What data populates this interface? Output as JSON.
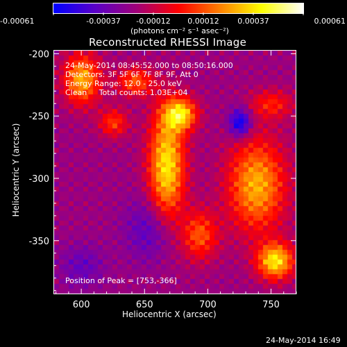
{
  "chart_data": {
    "type": "heatmap",
    "title": "Reconstructed RHESSI Image",
    "xlabel": "Heliocentric X (arcsec)",
    "ylabel": "Heliocentric Y (arcsec)",
    "xlim": [
      578,
      770
    ],
    "ylim": [
      -393,
      -197
    ],
    "x_ticks": [
      600,
      650,
      700,
      750
    ],
    "x_tick_labels": [
      "600",
      "650",
      "700",
      "750"
    ],
    "y_ticks": [
      -200,
      -250,
      -300,
      -350
    ],
    "y_tick_labels": [
      "-200",
      "-250",
      "-300",
      "-350"
    ],
    "colorbar": {
      "ticks": [
        "-0.00061",
        "-0.00037",
        "-0.00012",
        "0.00012",
        "0.00037",
        "0.00061"
      ],
      "range": [
        -0.00061,
        0.00061
      ],
      "unit_label": "(photons cm⁻² s⁻¹ asec⁻²)",
      "colormap": [
        "#0000ff",
        "#5a00c8",
        "#a00078",
        "#ff0000",
        "#ff8000",
        "#ffff00",
        "#ffffff"
      ]
    },
    "annotations": {
      "time_range": "24-May-2014 08:45:52.000 to 08:50:16.000",
      "detectors": "Detectors: 3F 5F 6F 7F 8F 9F, Att 0",
      "energy_range": "Energy Range: 12.0 - 25.0 keV",
      "clean_counts": "Clean     Total counts: 1.03E+04",
      "peak": "Position of Peak = [753,-366]"
    },
    "sources": [
      {
        "x": 667,
        "y": -290,
        "sx": 10,
        "sy": 32,
        "amp": 0.0006
      },
      {
        "x": 678,
        "y": -248,
        "sx": 9,
        "sy": 9,
        "amp": 0.00055
      },
      {
        "x": 600,
        "y": -220,
        "sx": 10,
        "sy": 14,
        "amp": 0.0005
      },
      {
        "x": 738,
        "y": -305,
        "sx": 16,
        "sy": 26,
        "amp": 0.0005
      },
      {
        "x": 753,
        "y": -366,
        "sx": 10,
        "sy": 10,
        "amp": 0.0006
      },
      {
        "x": 693,
        "y": -345,
        "sx": 10,
        "sy": 14,
        "amp": 0.00035
      },
      {
        "x": 625,
        "y": -255,
        "sx": 8,
        "sy": 8,
        "amp": 0.0003
      },
      {
        "x": 642,
        "y": -222,
        "sx": 10,
        "sy": 8,
        "amp": 0.00035
      },
      {
        "x": 750,
        "y": -240,
        "sx": 12,
        "sy": 8,
        "amp": 0.00025
      },
      {
        "x": 725,
        "y": -255,
        "sx": 6,
        "sy": 8,
        "amp": -0.0004
      },
      {
        "x": 655,
        "y": -340,
        "sx": 14,
        "sy": 18,
        "amp": -0.0002
      },
      {
        "x": 600,
        "y": -370,
        "sx": 12,
        "sy": 12,
        "amp": -0.00015
      }
    ],
    "baseline": -0.00022,
    "grid": false
  },
  "footer": {
    "timestamp": "24-May-2014 16:49"
  }
}
